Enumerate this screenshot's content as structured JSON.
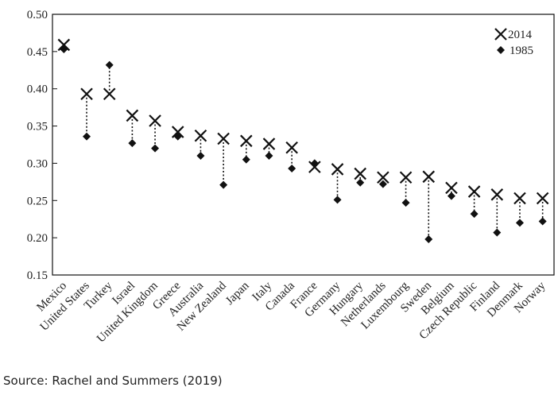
{
  "chart_data": {
    "type": "scatter",
    "categories": [
      "Mexico",
      "United States",
      "Turkey",
      "Israel",
      "United Kingdom",
      "Greece",
      "Australia",
      "New Zealand",
      "Japan",
      "Italy",
      "Canada",
      "France",
      "Germany",
      "Hungary",
      "Netherlands",
      "Luxembourg",
      "Sweden",
      "Belgium",
      "Czech Republic",
      "Finland",
      "Denmark",
      "Norway"
    ],
    "series": [
      {
        "name": "2014",
        "marker": "x",
        "values": [
          0.459,
          0.393,
          0.393,
          0.364,
          0.357,
          0.342,
          0.337,
          0.333,
          0.33,
          0.326,
          0.321,
          0.295,
          0.292,
          0.286,
          0.281,
          0.281,
          0.282,
          0.267,
          0.262,
          0.258,
          0.253,
          0.253
        ]
      },
      {
        "name": "1985",
        "marker": "diamond",
        "values": [
          0.453,
          0.336,
          0.432,
          0.327,
          0.32,
          0.336,
          0.31,
          0.271,
          0.305,
          0.31,
          0.293,
          0.3,
          0.251,
          0.274,
          0.272,
          0.247,
          0.198,
          0.256,
          0.232,
          0.207,
          0.22,
          0.222
        ]
      }
    ],
    "connectors": "dotted vertical line between 1985 and 2014 values",
    "ylim": [
      0.15,
      0.5
    ],
    "yticks": [
      "0.50",
      "0.45",
      "0.40",
      "0.35",
      "0.30",
      "0.25",
      "0.20",
      "0.15"
    ],
    "grid": false,
    "legend_position": "top-right",
    "colors": {
      "marker": "#111111",
      "axis": "#111111"
    }
  },
  "source_note": "Source: Rachel and Summers (2019)"
}
